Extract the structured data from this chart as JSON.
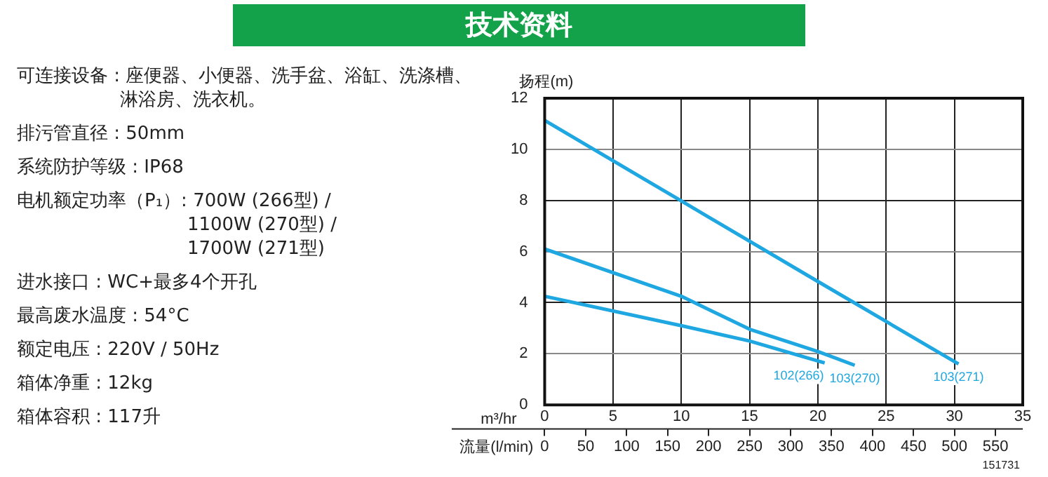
{
  "chart_data": {
    "type": "line",
    "title": "技术资料",
    "annotations": [
      "可连接设备 : 座便器、小便器、洗手盆、浴缸、洗涤槽、淋浴房、洗衣机。",
      "排污管直径 : 50mm",
      "系统防护等级 : IP68",
      "电机额定功率（P₁）: 700W (266型) /\n1100W (270型) /\n1700W (271型)",
      "进水接口 : WC+最多4个开孔",
      "最高废水温度 : 54°C",
      "额定电压 : 220V / 50Hz",
      "箱体净重 : 12kg",
      "箱体容积 : 117升",
      "151731"
    ],
    "ylabel": "扬程(m)",
    "xlabel": "m³/hr",
    "x2label": "流量(l/min)",
    "xlim": [
      0,
      35
    ],
    "xticks": [
      0,
      5,
      10,
      15,
      20,
      25,
      30,
      35
    ],
    "ylim": [
      0,
      12
    ],
    "yticks": [
      0,
      2,
      4,
      6,
      8,
      10,
      12
    ],
    "x2lim": [
      0,
      583.3
    ],
    "x2ticks": [
      0,
      50,
      100,
      150,
      200,
      250,
      300,
      350,
      400,
      450,
      500,
      550
    ],
    "grid": true,
    "legend": false,
    "marker": "none",
    "line_style": "solid",
    "series": [
      {
        "name": "102(266)",
        "color": "#1ea7e1",
        "x": [
          0,
          10,
          15,
          20.5
        ],
        "values": [
          4.25,
          3.1,
          2.5,
          1.64
        ]
      },
      {
        "name": "103(270)",
        "color": "#1ea7e1",
        "x": [
          0,
          10,
          15,
          20,
          22.7
        ],
        "values": [
          6.1,
          4.25,
          2.96,
          2.09,
          1.55
        ]
      },
      {
        "name": "103(271)",
        "color": "#1ea7e1",
        "x": [
          0,
          10,
          20,
          30.3
        ],
        "values": [
          11.13,
          7.98,
          4.83,
          1.6
        ]
      }
    ]
  }
}
